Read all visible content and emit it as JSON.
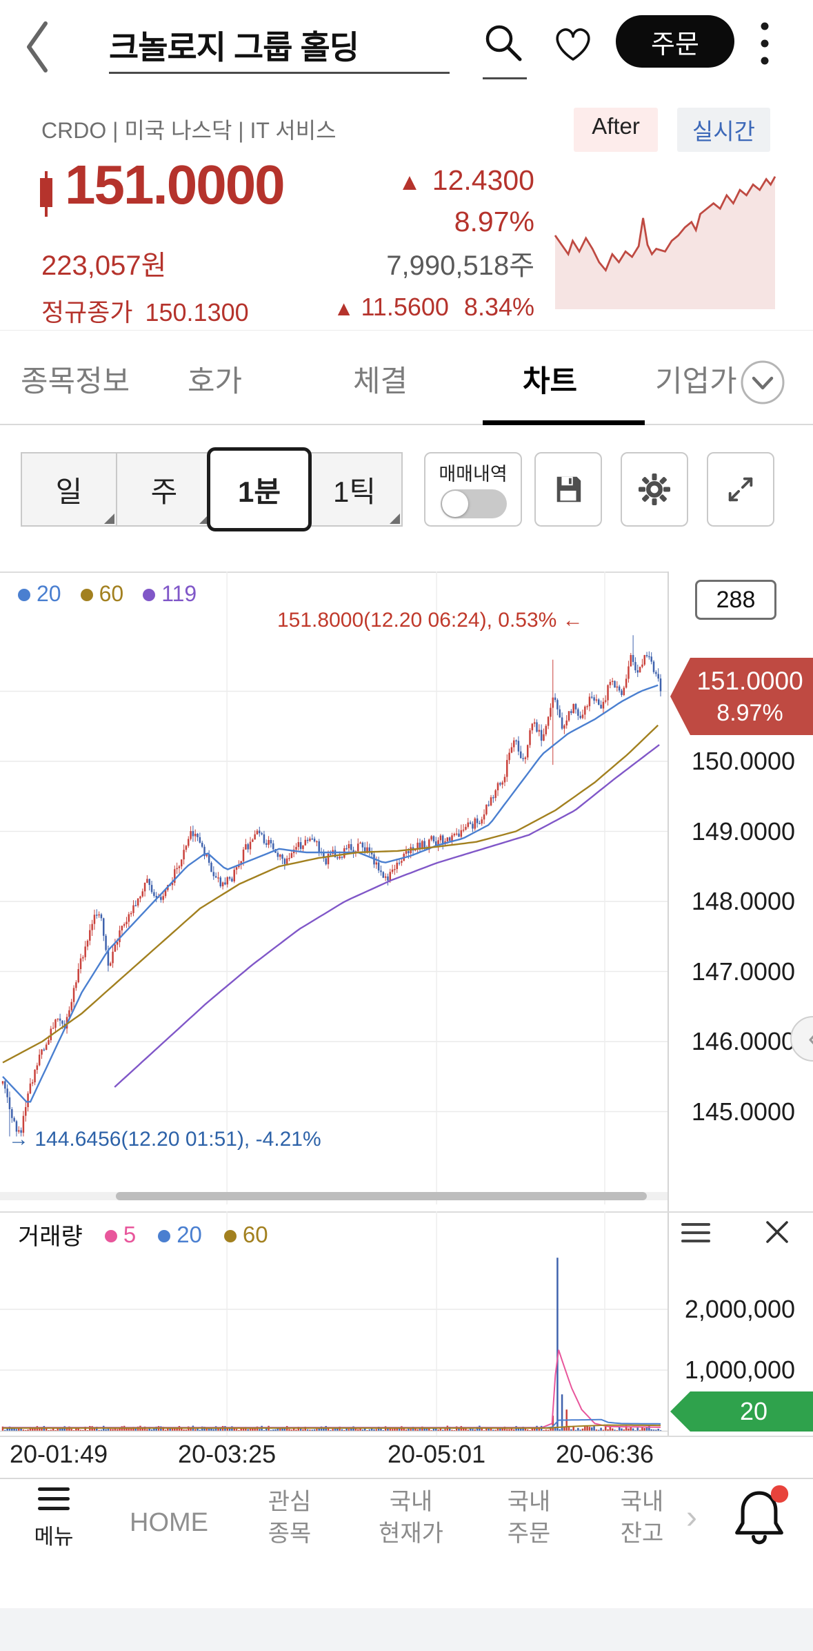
{
  "header": {
    "title": "크놀로지 그룹 홀딩",
    "order_button": "주문"
  },
  "stock_info": {
    "meta": "CRDO | 미국 나스닥 | IT 서비스",
    "after_badge": "After",
    "realtime_badge": "실시간",
    "price": "151.0000",
    "up_arrow": "▲",
    "change": "12.4300",
    "change_pct": "8.97%",
    "krw_price": "223,057원",
    "share_volume": "7,990,518주",
    "regular_close_label": "정규종가",
    "regular_close": "150.1300",
    "regular_change": "11.5600",
    "regular_change_pct": "8.34%"
  },
  "tabs": {
    "items": [
      "종목정보",
      "호가",
      "체결",
      "차트",
      "기업가"
    ],
    "active": "차트"
  },
  "controls": {
    "periods": [
      "일",
      "주",
      "1분",
      "1틱"
    ],
    "selected_period": "1분",
    "trade_toggle_label": "매매내역"
  },
  "chart": {
    "high_annotation": "151.8000(12.20 06:24), 0.53% ←",
    "low_annotation": "→ 144.6456(12.20 01:51), -4.21%",
    "price_badge": {
      "price": "151.0000",
      "pct": "8.97%",
      "color": "#bf4a42"
    }
  },
  "volume_panel": {
    "label": "거래량",
    "badge": {
      "value": "20",
      "color": "#2fa24c"
    }
  },
  "bottom_nav": {
    "items": [
      {
        "line1": "메뉴"
      },
      {
        "line1": "HOME"
      },
      {
        "line1": "관심",
        "line2": "종목"
      },
      {
        "line1": "국내",
        "line2": "현재가"
      },
      {
        "line1": "국내",
        "line2": "주문"
      },
      {
        "line1": "국내",
        "line2": "잔고"
      }
    ]
  },
  "chart_data": {
    "type": "candlestick",
    "candle_count": 288,
    "last_price": 151.0,
    "session_high": 151.8,
    "session_low": 144.6456,
    "colors": {
      "up": "#c9413b",
      "down": "#3f62ad"
    },
    "y_ticks": [
      150,
      149,
      148,
      147,
      146,
      145
    ],
    "x_tick_labels": [
      "20-01:49",
      "20-03:25",
      "20-05:01",
      "20-06:36"
    ],
    "x_tick_pos_pct": [
      1.5,
      34,
      65.4,
      90.6
    ],
    "price_anchors": [
      [
        0,
        145.4
      ],
      [
        1,
        144.9
      ],
      [
        2.5,
        144.68
      ],
      [
        4,
        145.3
      ],
      [
        6,
        145.9
      ],
      [
        8,
        146.4
      ],
      [
        9,
        146.1
      ],
      [
        11,
        146.9
      ],
      [
        13,
        147.5
      ],
      [
        14.5,
        147.9
      ],
      [
        16,
        147.1
      ],
      [
        18,
        147.6
      ],
      [
        20,
        147.9
      ],
      [
        22,
        148.3
      ],
      [
        24,
        148.0
      ],
      [
        26,
        148.4
      ],
      [
        28,
        148.9
      ],
      [
        29.5,
        149.0
      ],
      [
        31,
        148.6
      ],
      [
        33,
        148.2
      ],
      [
        35,
        148.4
      ],
      [
        37,
        148.8
      ],
      [
        39,
        149.0
      ],
      [
        41,
        148.7
      ],
      [
        43,
        148.5
      ],
      [
        45,
        148.8
      ],
      [
        47,
        148.9
      ],
      [
        49,
        148.6
      ],
      [
        51,
        148.7
      ],
      [
        53,
        148.8
      ],
      [
        55,
        148.75
      ],
      [
        57,
        148.5
      ],
      [
        58.5,
        148.35
      ],
      [
        60,
        148.6
      ],
      [
        62,
        148.75
      ],
      [
        64,
        148.8
      ],
      [
        66,
        148.9
      ],
      [
        68,
        148.85
      ],
      [
        70,
        149.0
      ],
      [
        72,
        149.15
      ],
      [
        74,
        149.4
      ],
      [
        76,
        149.8
      ],
      [
        77.5,
        150.3
      ],
      [
        79,
        150.0
      ],
      [
        80.5,
        150.6
      ],
      [
        82,
        150.3
      ],
      [
        83.5,
        150.9
      ],
      [
        85,
        150.4
      ],
      [
        86.5,
        150.8
      ],
      [
        88,
        150.6
      ],
      [
        89.5,
        151.0
      ],
      [
        91,
        150.8
      ],
      [
        92.5,
        151.2
      ],
      [
        94,
        150.9
      ],
      [
        95.5,
        151.5
      ],
      [
        96.5,
        151.3
      ],
      [
        98,
        151.6
      ],
      [
        100,
        151.0
      ]
    ],
    "ma_series": [
      {
        "name": "20",
        "color": "#4a7fd0",
        "anchors": [
          [
            0,
            145.5
          ],
          [
            4,
            145.1
          ],
          [
            8,
            145.9
          ],
          [
            12,
            146.7
          ],
          [
            16,
            147.3
          ],
          [
            20,
            147.7
          ],
          [
            24,
            148.1
          ],
          [
            28,
            148.5
          ],
          [
            31,
            148.7
          ],
          [
            34,
            148.45
          ],
          [
            38,
            148.6
          ],
          [
            42,
            148.75
          ],
          [
            46,
            148.7
          ],
          [
            50,
            148.7
          ],
          [
            54,
            148.7
          ],
          [
            58,
            148.55
          ],
          [
            62,
            148.65
          ],
          [
            66,
            148.8
          ],
          [
            70,
            148.9
          ],
          [
            74,
            149.1
          ],
          [
            78,
            149.6
          ],
          [
            82,
            150.1
          ],
          [
            86,
            150.4
          ],
          [
            90,
            150.6
          ],
          [
            94,
            150.85
          ],
          [
            97,
            151.0
          ],
          [
            100,
            151.1
          ]
        ]
      },
      {
        "name": "60",
        "color": "#a2801f",
        "anchors": [
          [
            0,
            145.7
          ],
          [
            6,
            146.0
          ],
          [
            12,
            146.4
          ],
          [
            18,
            146.9
          ],
          [
            24,
            147.4
          ],
          [
            30,
            147.9
          ],
          [
            36,
            148.25
          ],
          [
            42,
            148.5
          ],
          [
            48,
            148.62
          ],
          [
            54,
            148.7
          ],
          [
            60,
            148.72
          ],
          [
            66,
            148.78
          ],
          [
            72,
            148.85
          ],
          [
            78,
            149.0
          ],
          [
            84,
            149.3
          ],
          [
            90,
            149.7
          ],
          [
            95,
            150.1
          ],
          [
            100,
            150.55
          ]
        ]
      },
      {
        "name": "119",
        "color": "#8057c8",
        "anchors": [
          [
            17,
            145.35
          ],
          [
            24,
            145.95
          ],
          [
            31,
            146.55
          ],
          [
            38,
            147.1
          ],
          [
            45,
            147.6
          ],
          [
            52,
            148.0
          ],
          [
            59,
            148.3
          ],
          [
            66,
            148.55
          ],
          [
            73,
            148.75
          ],
          [
            80,
            148.95
          ],
          [
            87,
            149.3
          ],
          [
            93,
            149.75
          ],
          [
            100,
            150.25
          ]
        ]
      }
    ],
    "special_candles": [
      {
        "pct": 1.0,
        "low": 144.6456
      },
      {
        "pct": 83.5,
        "high": 151.45,
        "low": 149.95
      },
      {
        "pct": 95.8,
        "high": 151.8
      }
    ],
    "volume": {
      "base_max": 75000,
      "y_ticks": [
        2000000,
        1000000
      ],
      "y_tick_labels": [
        "2,000,000",
        "1,000,000"
      ],
      "spikes": [
        {
          "pct": 84.2,
          "value": 2850000
        },
        {
          "pct": 84.9,
          "value": 600000
        },
        {
          "pct": 85.6,
          "value": 350000
        },
        {
          "pct": 83.5,
          "value": 250000
        }
      ],
      "ma_series": [
        {
          "name": "5",
          "color": "#e8569b",
          "anchors": [
            [
              0,
              55000
            ],
            [
              82,
              55000
            ],
            [
              83.5,
              120000
            ],
            [
              84.3,
              1400000
            ],
            [
              85.2,
              1100000
            ],
            [
              86.5,
              700000
            ],
            [
              88,
              350000
            ],
            [
              90,
              120000
            ],
            [
              92,
              70000
            ],
            [
              100,
              60000
            ]
          ]
        },
        {
          "name": "20",
          "color": "#4a7fd0",
          "anchors": [
            [
              0,
              48000
            ],
            [
              82.5,
              48000
            ],
            [
              83.5,
              60000
            ],
            [
              84.5,
              175000
            ],
            [
              91,
              185000
            ],
            [
              92,
              140000
            ],
            [
              94,
              120000
            ],
            [
              100,
              115000
            ]
          ]
        },
        {
          "name": "60",
          "color": "#a2801f",
          "anchors": [
            [
              0,
              45000
            ],
            [
              83,
              45000
            ],
            [
              86,
              70000
            ],
            [
              92,
              95000
            ],
            [
              100,
              90000
            ]
          ]
        }
      ]
    },
    "sparkline": {
      "color": "#bf4a42",
      "points": [
        [
          0,
          48
        ],
        [
          3,
          55
        ],
        [
          6,
          62
        ],
        [
          8,
          52
        ],
        [
          11,
          60
        ],
        [
          14,
          50
        ],
        [
          17,
          58
        ],
        [
          20,
          68
        ],
        [
          23,
          74
        ],
        [
          26,
          62
        ],
        [
          29,
          68
        ],
        [
          32,
          60
        ],
        [
          35,
          64
        ],
        [
          38,
          56
        ],
        [
          40,
          35
        ],
        [
          42,
          55
        ],
        [
          44,
          62
        ],
        [
          46,
          58
        ],
        [
          50,
          60
        ],
        [
          53,
          52
        ],
        [
          56,
          48
        ],
        [
          59,
          42
        ],
        [
          62,
          38
        ],
        [
          64,
          44
        ],
        [
          66,
          32
        ],
        [
          69,
          28
        ],
        [
          72,
          24
        ],
        [
          75,
          28
        ],
        [
          78,
          18
        ],
        [
          81,
          24
        ],
        [
          84,
          14
        ],
        [
          87,
          18
        ],
        [
          90,
          10
        ],
        [
          93,
          14
        ],
        [
          96,
          6
        ],
        [
          98,
          10
        ],
        [
          100,
          4
        ]
      ]
    }
  }
}
